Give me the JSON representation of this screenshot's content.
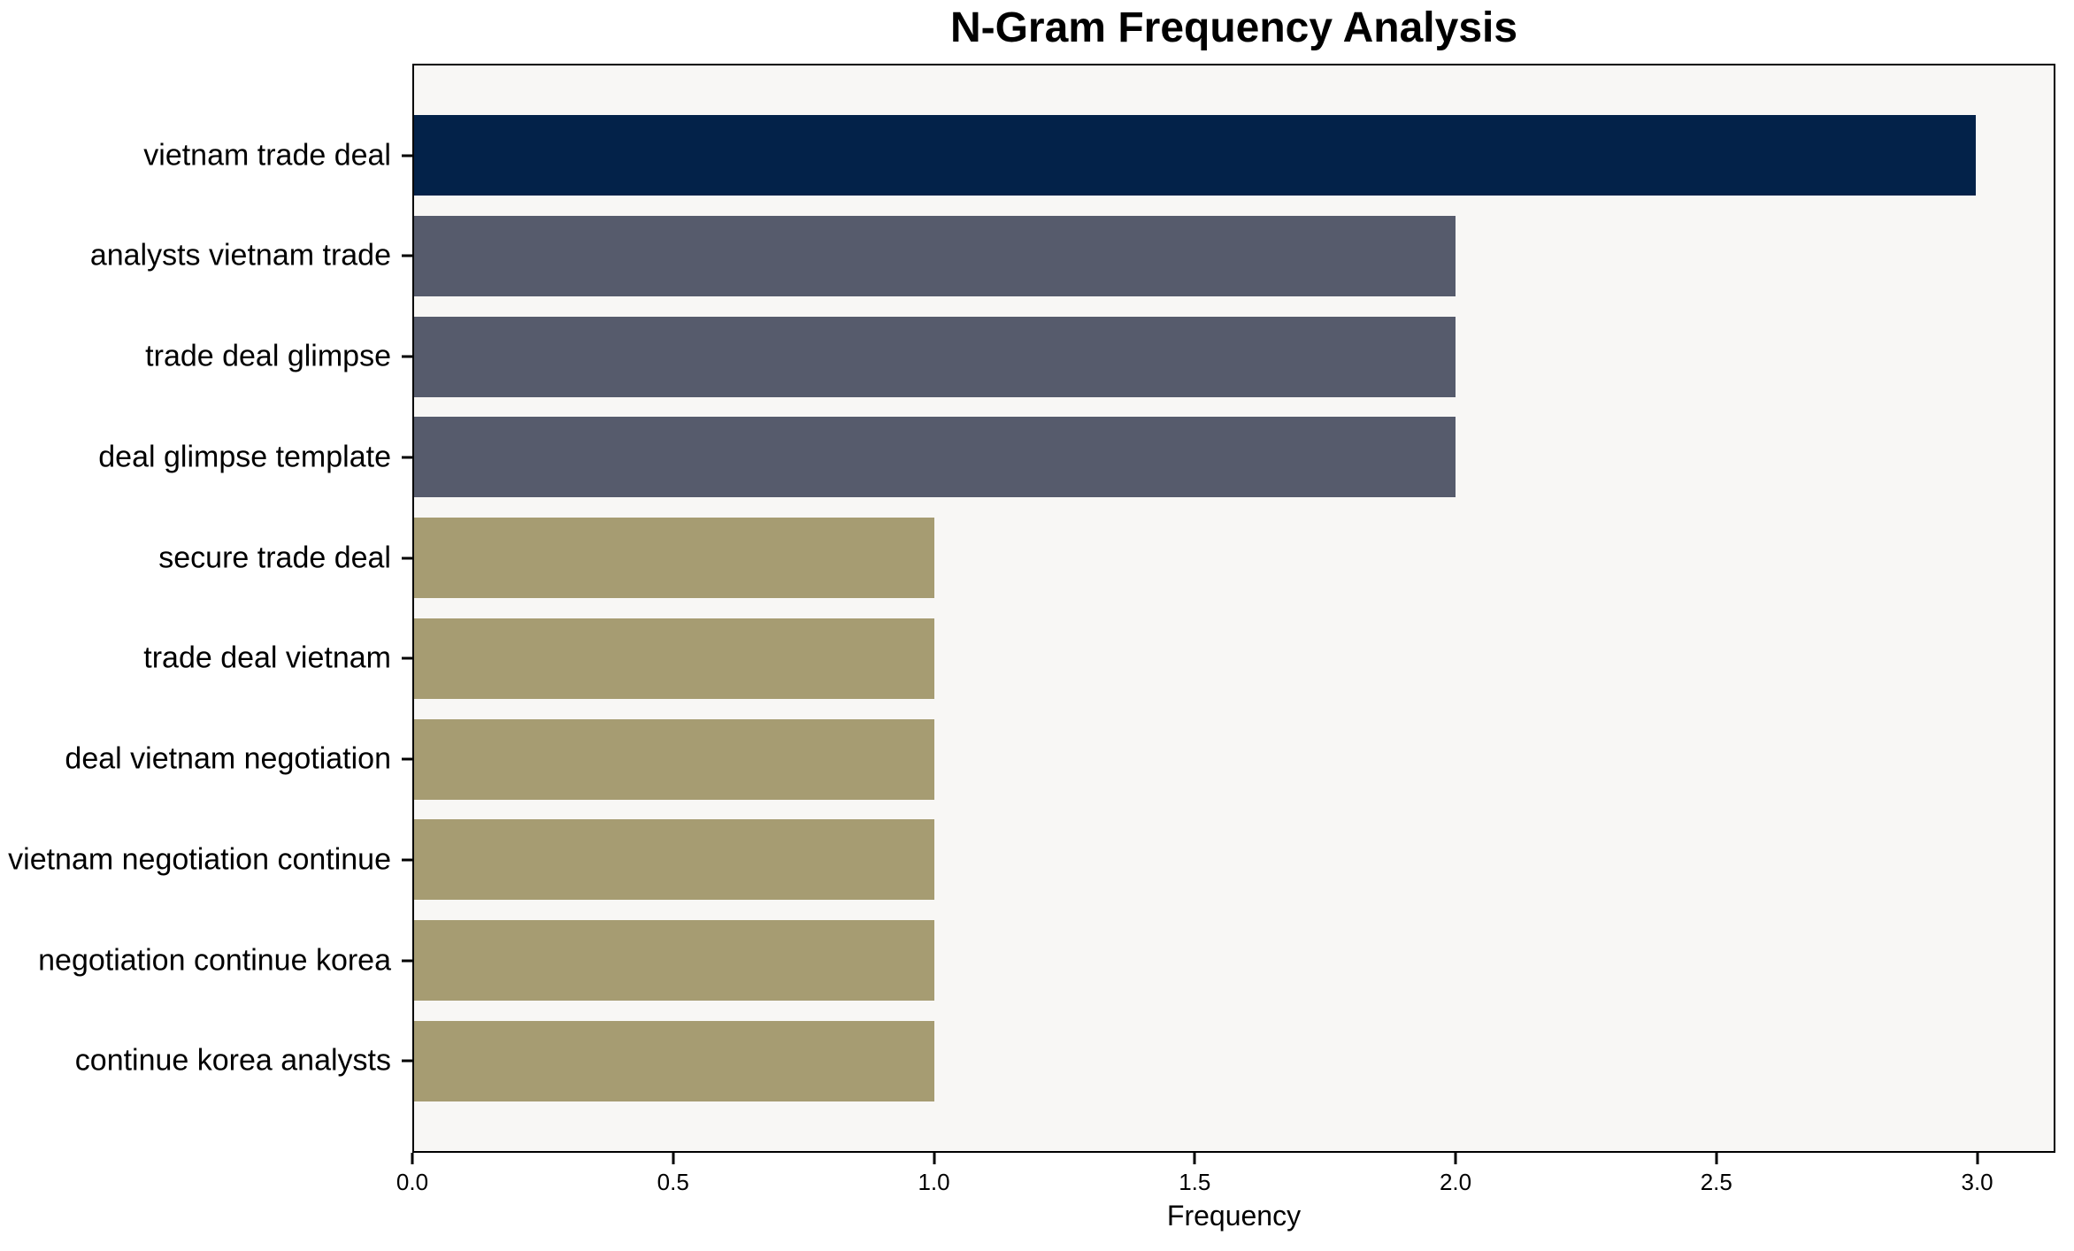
{
  "chart_data": {
    "type": "bar",
    "orientation": "horizontal",
    "title": "N-Gram Frequency Analysis",
    "xlabel": "Frequency",
    "ylabel": "",
    "categories": [
      "vietnam trade deal",
      "analysts vietnam trade",
      "trade deal glimpse",
      "deal glimpse template",
      "secure trade deal",
      "trade deal vietnam",
      "deal vietnam negotiation",
      "vietnam negotiation continue",
      "negotiation continue korea",
      "continue korea analysts"
    ],
    "values": [
      3,
      2,
      2,
      2,
      1,
      1,
      1,
      1,
      1,
      1
    ],
    "xlim": [
      0,
      3.15
    ],
    "xtick_labels": [
      "0.0",
      "0.5",
      "1.0",
      "1.5",
      "2.0",
      "2.5",
      "3.0"
    ],
    "grid": false,
    "legend_position": null,
    "bar_colors": [
      "#032249",
      "#565b6c",
      "#565b6c",
      "#565b6c",
      "#a69c72",
      "#a69c72",
      "#a69c72",
      "#a69c72",
      "#a69c72",
      "#a69c72"
    ],
    "plot_background": "#f8f7f5",
    "figure_background": "#ffffff",
    "text_color": "#000000"
  }
}
